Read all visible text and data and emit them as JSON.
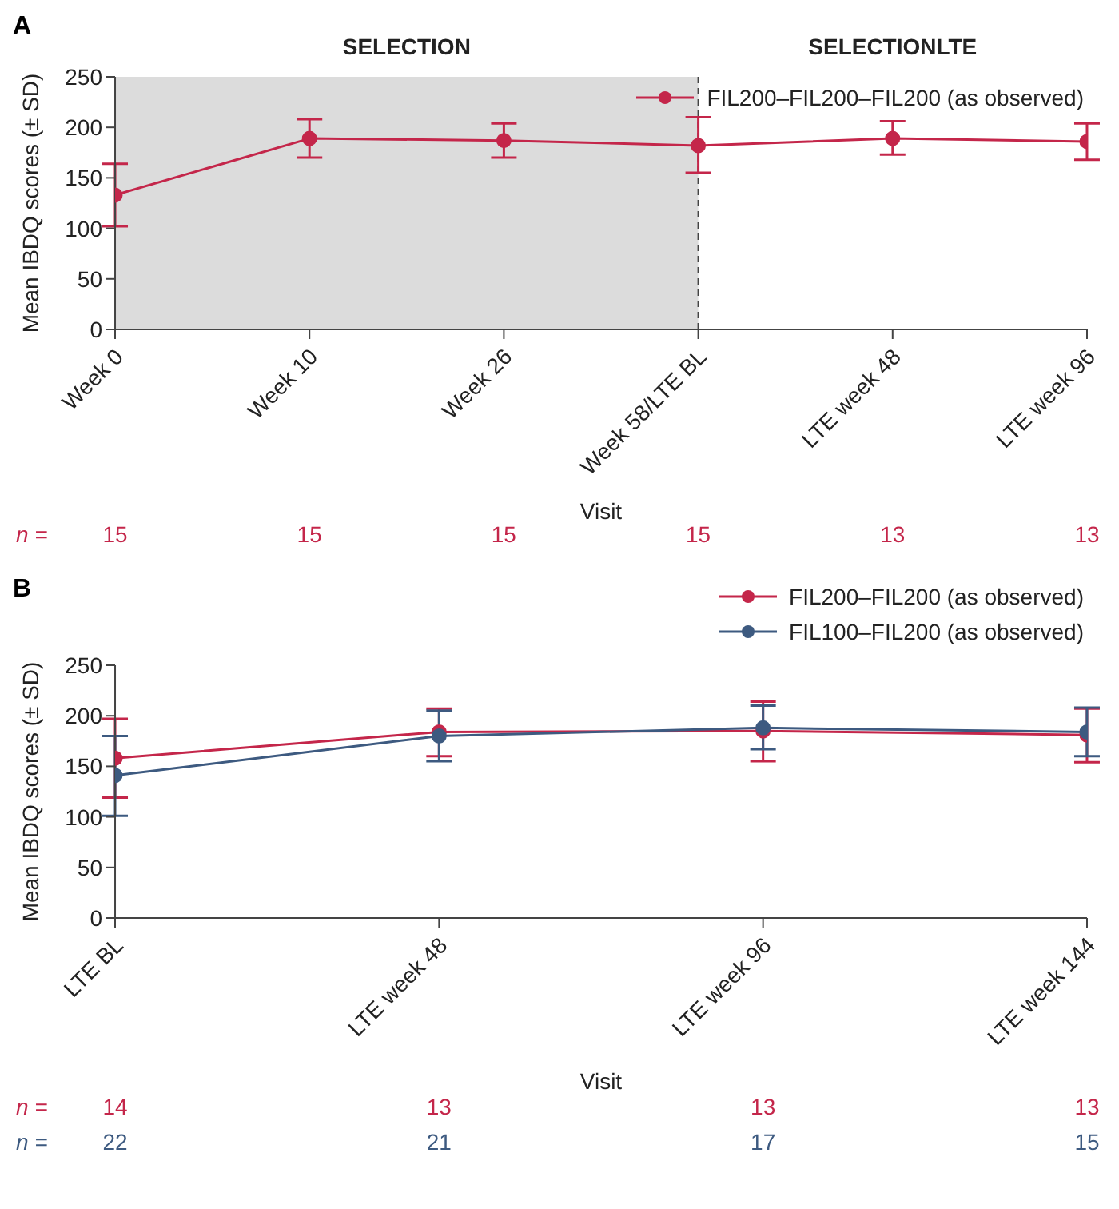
{
  "chart_data": [
    {
      "type": "line",
      "title": "A",
      "xlabel": "Visit",
      "ylabel": "Mean IBDQ scores (± SD)",
      "categories": [
        "Week 0",
        "Week 10",
        "Week 26",
        "Week 58/LTE BL",
        "LTE week 48",
        "LTE week 96"
      ],
      "ylim": [
        0,
        250
      ],
      "yticks": [
        0,
        50,
        100,
        150,
        200,
        250
      ],
      "marker": "circle",
      "legend": "top right",
      "series": [
        {
          "name": "FIL200–FIL200–FIL200 (as observed)",
          "color": "#c4264a",
          "values": [
            133,
            189,
            187,
            182,
            189,
            186
          ],
          "errors": [
            [
              102,
              164
            ],
            [
              170,
              208
            ],
            [
              170,
              204
            ],
            [
              155,
              210
            ],
            [
              173,
              206
            ],
            [
              168,
              204
            ]
          ]
        }
      ],
      "bands": [
        {
          "axis": "x",
          "from": "Week 0",
          "to": "Week 58/LTE BL",
          "label": "SELECTION",
          "color": "#dcdcdc"
        }
      ],
      "ref_lines": [
        {
          "axis": "x",
          "value": "Week 58/LTE BL",
          "label": "SELECTIONLTE",
          "line_style": "dashed",
          "color": "#444444"
        }
      ],
      "annotations": [
        "n =",
        "15",
        "15",
        "15",
        "15",
        "13",
        "13"
      ]
    },
    {
      "type": "line",
      "title": "B",
      "xlabel": "Visit",
      "ylabel": "Mean IBDQ scores (± SD)",
      "categories": [
        "LTE BL",
        "LTE week 48",
        "LTE week 96",
        "LTE week 144"
      ],
      "ylim": [
        0,
        250
      ],
      "yticks": [
        0,
        50,
        100,
        150,
        200,
        250
      ],
      "marker": "circle",
      "legend": "top right",
      "series": [
        {
          "name": "FIL200–FIL200 (as observed)",
          "color": "#c4264a",
          "values": [
            158,
            184,
            185,
            181
          ],
          "errors": [
            [
              119,
              197
            ],
            [
              160,
              207
            ],
            [
              155,
              214
            ],
            [
              154,
              207
            ]
          ]
        },
        {
          "name": "FIL100–FIL200 (as observed)",
          "color": "#3d5a80",
          "values": [
            141,
            180,
            188,
            184
          ],
          "errors": [
            [
              101,
              180
            ],
            [
              155,
              205
            ],
            [
              167,
              210
            ],
            [
              160,
              208
            ]
          ]
        }
      ],
      "annotations": [
        "n =",
        "14",
        "13",
        "13",
        "13",
        "n =",
        "22",
        "21",
        "17",
        "15"
      ]
    }
  ]
}
